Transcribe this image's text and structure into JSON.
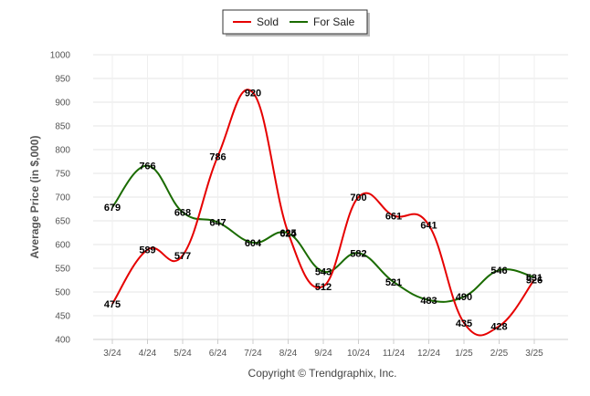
{
  "chart_data": {
    "type": "line",
    "x": [
      "3/24",
      "4/24",
      "5/24",
      "6/24",
      "7/24",
      "8/24",
      "9/24",
      "10/24",
      "11/24",
      "12/24",
      "1/25",
      "2/25",
      "3/25"
    ],
    "series": [
      {
        "name": "Sold",
        "color": "#e60000",
        "values": [
          475,
          589,
          577,
          786,
          920,
          625,
          512,
          700,
          661,
          641,
          435,
          428,
          526
        ]
      },
      {
        "name": "For Sale",
        "color": "#1a6b00",
        "values": [
          679,
          766,
          668,
          647,
          604,
          624,
          543,
          582,
          521,
          483,
          490,
          546,
          531
        ]
      }
    ],
    "ylabel": "Average Price (in $,000)",
    "xlabel": "",
    "ylim": [
      400,
      1000
    ],
    "yticks": [
      400,
      450,
      500,
      550,
      600,
      650,
      700,
      750,
      800,
      850,
      900,
      950,
      1000
    ],
    "grid": true,
    "legend_position": "top-center"
  },
  "footer": {
    "copyright": "Copyright © Trendgraphix, Inc."
  }
}
